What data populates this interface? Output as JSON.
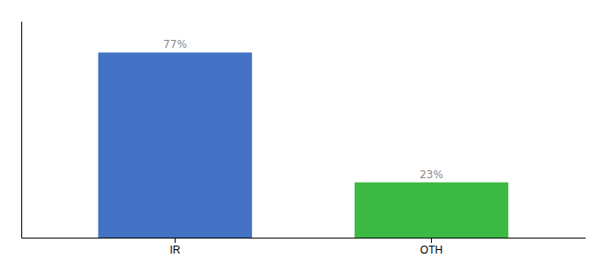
{
  "chart_data": {
    "type": "bar",
    "categories": [
      "IR",
      "OTH"
    ],
    "values": [
      77,
      23
    ],
    "value_labels": [
      "77%",
      "23%"
    ],
    "colors": [
      "#4472C4",
      "#3CB943"
    ],
    "ylim": [
      0,
      90
    ],
    "yticks": [],
    "grid": false,
    "data_labels": true,
    "tick_labels": "x"
  }
}
